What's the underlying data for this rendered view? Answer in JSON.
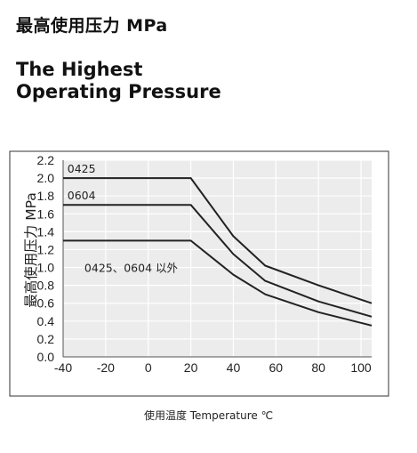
{
  "header": {
    "title_cn": "最高使用压力 MPa",
    "title_en_line1": "The Highest",
    "title_en_line2": "Operating Pressure"
  },
  "chart_data": {
    "type": "line",
    "ylabel": "最高使用压力 MPa",
    "xlabel": "使用温度 Temperature ℃",
    "xlim": [
      -40,
      105
    ],
    "ylim": [
      0,
      2.2
    ],
    "x_ticks": [
      -40,
      -20,
      0,
      20,
      40,
      60,
      80,
      100
    ],
    "x_tick_labels": [
      "-40",
      "-20",
      "0",
      "20",
      "40",
      "60",
      "80",
      "100"
    ],
    "y_ticks": [
      0,
      0.2,
      0.4,
      0.6,
      0.8,
      1.0,
      1.2,
      1.4,
      1.6,
      1.8,
      2.0,
      2.2
    ],
    "y_tick_labels": [
      "0.0",
      "0.2",
      "0.4",
      "0.6",
      "0.8",
      "1.0",
      "1.2",
      "1.4",
      "1.6",
      "1.8",
      "2.0",
      "2.2"
    ],
    "grid": true,
    "series": [
      {
        "name": "0425",
        "x": [
          -40,
          20,
          40,
          55,
          80,
          105
        ],
        "y": [
          2.0,
          2.0,
          1.35,
          1.02,
          0.8,
          0.6
        ]
      },
      {
        "name": "0604",
        "x": [
          -40,
          20,
          40,
          55,
          80,
          105
        ],
        "y": [
          1.7,
          1.7,
          1.15,
          0.85,
          0.62,
          0.45
        ]
      },
      {
        "name": "0425、0604 以外",
        "x": [
          -40,
          20,
          40,
          55,
          80,
          105
        ],
        "y": [
          1.3,
          1.3,
          0.92,
          0.7,
          0.5,
          0.35
        ]
      }
    ],
    "colors": {
      "line": "#222222",
      "plot_bg": "#ececec",
      "grid": "#ffffff",
      "frame": "#333333"
    }
  }
}
